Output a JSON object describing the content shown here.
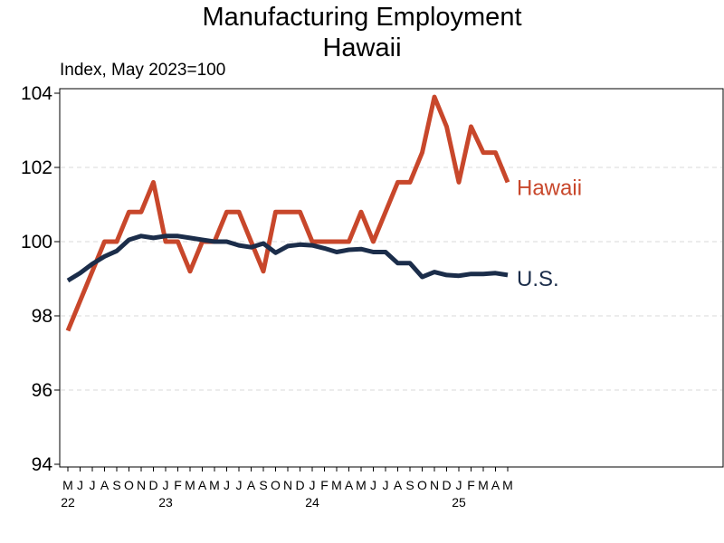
{
  "chart_data": {
    "type": "line",
    "title": [
      "Manufacturing Employment",
      "Hawaii"
    ],
    "subtitle": "Index, May 2023=100",
    "xlabel": "",
    "ylabel": "",
    "ylim": [
      94,
      104
    ],
    "yticks": [
      94,
      96,
      98,
      100,
      102,
      104
    ],
    "grid": "horizontal-dashed",
    "legend": "inline-right",
    "month_ticks": [
      "M",
      "J",
      "J",
      "A",
      "S",
      "O",
      "N",
      "D",
      "J",
      "F",
      "M",
      "A",
      "M",
      "J",
      "J",
      "A",
      "S",
      "O",
      "N",
      "D",
      "J",
      "F",
      "M",
      "A",
      "M",
      "J",
      "J",
      "A",
      "S",
      "O",
      "N",
      "D",
      "J",
      "F",
      "M",
      "A",
      "M"
    ],
    "year_labels": [
      {
        "label": "22",
        "index": 0
      },
      {
        "label": "23",
        "index": 8
      },
      {
        "label": "24",
        "index": 20
      },
      {
        "label": "25",
        "index": 32
      }
    ],
    "x": [
      "2022-05",
      "2022-06",
      "2022-07",
      "2022-08",
      "2022-09",
      "2022-10",
      "2022-11",
      "2022-12",
      "2023-01",
      "2023-02",
      "2023-03",
      "2023-04",
      "2023-05",
      "2023-06",
      "2023-07",
      "2023-08",
      "2023-09",
      "2023-10",
      "2023-11",
      "2023-12",
      "2024-01",
      "2024-02",
      "2024-03",
      "2024-04",
      "2024-05",
      "2024-06",
      "2024-07",
      "2024-08",
      "2024-09",
      "2024-10",
      "2024-11",
      "2024-12",
      "2025-01",
      "2025-02",
      "2025-03",
      "2025-04",
      "2025-05"
    ],
    "series": [
      {
        "name": "Hawaii",
        "color": "#c8472b",
        "values": [
          97.6,
          98.4,
          99.2,
          100.0,
          100.0,
          100.8,
          100.8,
          101.6,
          100.0,
          100.0,
          99.2,
          100.0,
          100.0,
          100.8,
          100.8,
          100.0,
          99.2,
          100.8,
          100.8,
          100.8,
          100.0,
          100.0,
          100.0,
          100.0,
          100.8,
          100.0,
          100.8,
          101.6,
          101.6,
          102.4,
          103.9,
          103.1,
          101.6,
          103.1,
          102.4,
          102.4,
          101.6
        ]
      },
      {
        "name": "U.S.",
        "color": "#1b2d4a",
        "values": [
          98.95,
          99.15,
          99.4,
          99.6,
          99.75,
          100.05,
          100.15,
          100.1,
          100.15,
          100.15,
          100.1,
          100.05,
          100.0,
          100.0,
          99.9,
          99.85,
          99.95,
          99.7,
          99.88,
          99.92,
          99.9,
          99.82,
          99.72,
          99.78,
          99.8,
          99.72,
          99.72,
          99.42,
          99.42,
          99.05,
          99.18,
          99.1,
          99.08,
          99.13,
          99.13,
          99.15,
          99.1
        ]
      }
    ]
  }
}
